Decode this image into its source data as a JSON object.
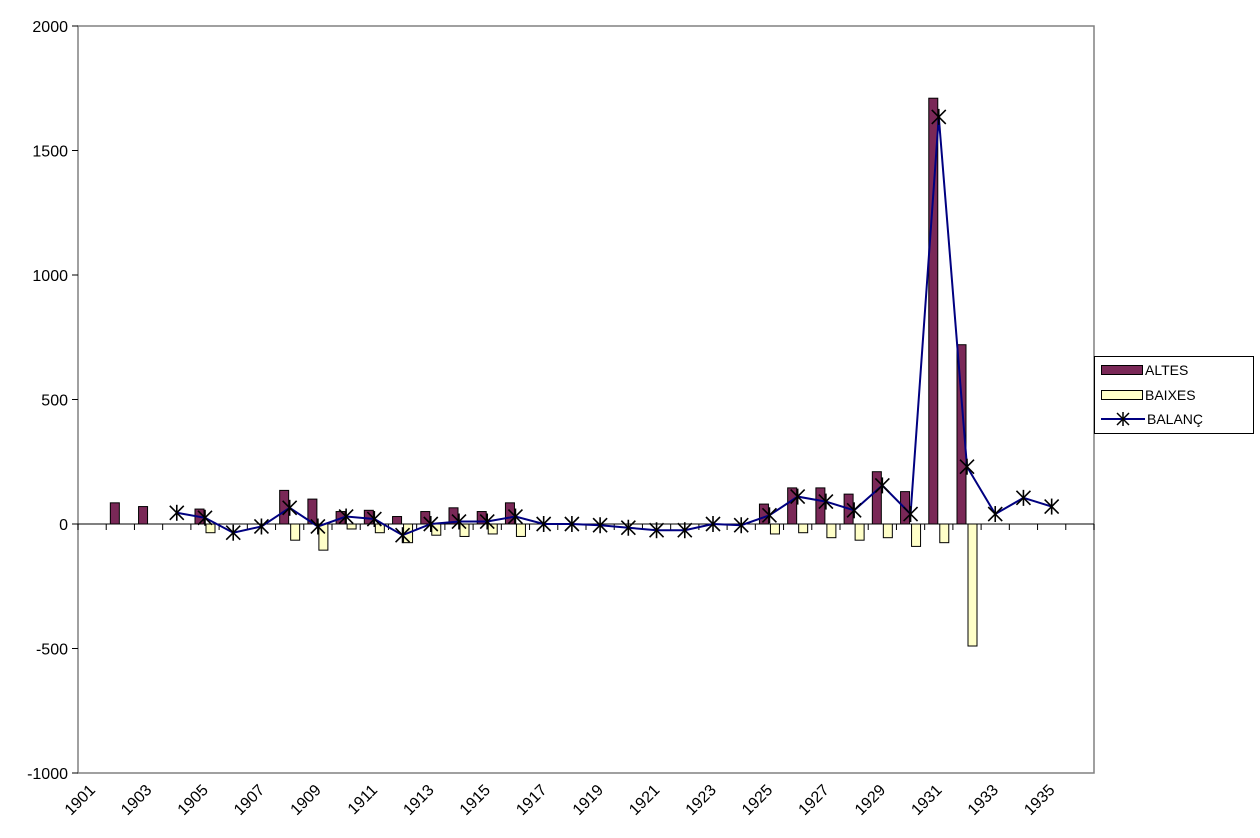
{
  "chart_data": {
    "type": "bar",
    "title": "",
    "xlabel": "",
    "ylabel": "",
    "ylim": [
      -1000,
      2000
    ],
    "yticks": [
      -1000,
      -500,
      0,
      500,
      1000,
      1500,
      2000
    ],
    "x_tick_labels": [
      "1901",
      "1903",
      "1905",
      "1907",
      "1909",
      "1911",
      "1913",
      "1915",
      "1917",
      "1919",
      "1921",
      "1923",
      "1925",
      "1927",
      "1929",
      "1931",
      "1933",
      "1935"
    ],
    "categories": [
      "1901",
      "1902",
      "1903",
      "1904",
      "1905",
      "1906",
      "1907",
      "1908",
      "1909",
      "1910",
      "1911",
      "1912",
      "1913",
      "1914",
      "1915",
      "1916",
      "1917",
      "1918",
      "1919",
      "1920",
      "1921",
      "1922",
      "1923",
      "1924",
      "1925",
      "1926",
      "1927",
      "1928",
      "1929",
      "1930",
      "1931",
      "1932",
      "1933",
      "1934",
      "1935",
      "1936"
    ],
    "series": [
      {
        "name": "ALTES",
        "kind": "bar",
        "color": "#7a2857",
        "values": [
          null,
          85,
          70,
          null,
          60,
          null,
          null,
          135,
          100,
          50,
          55,
          30,
          50,
          65,
          50,
          85,
          null,
          null,
          null,
          null,
          null,
          null,
          null,
          null,
          80,
          145,
          145,
          120,
          210,
          130,
          1710,
          720,
          null,
          null,
          null,
          null
        ]
      },
      {
        "name": "BAIXES",
        "kind": "bar",
        "color": "#ffffc8",
        "values": [
          null,
          null,
          null,
          null,
          -35,
          null,
          null,
          -65,
          -105,
          -20,
          -35,
          -75,
          -45,
          -50,
          -40,
          -50,
          null,
          null,
          null,
          null,
          null,
          null,
          null,
          null,
          -40,
          -35,
          -55,
          -65,
          -55,
          -90,
          -75,
          -490,
          null,
          null,
          null,
          null
        ]
      },
      {
        "name": "BALANÇ",
        "kind": "line",
        "color": "#000080",
        "values": [
          null,
          null,
          null,
          45,
          25,
          -35,
          -10,
          65,
          -10,
          30,
          20,
          -45,
          0,
          10,
          10,
          30,
          0,
          0,
          -5,
          -15,
          -25,
          -25,
          0,
          -5,
          35,
          110,
          90,
          55,
          155,
          40,
          1635,
          230,
          40,
          105,
          70,
          null
        ]
      }
    ]
  },
  "legend": {
    "items": [
      {
        "label": "ALTES"
      },
      {
        "label": "BAIXES"
      },
      {
        "label": "BALANÇ"
      }
    ]
  }
}
